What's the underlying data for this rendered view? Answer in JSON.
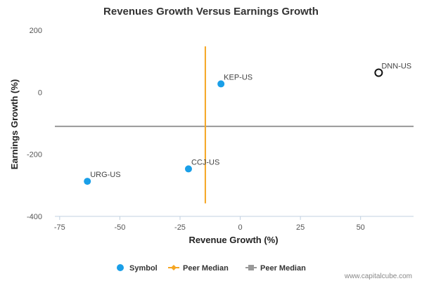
{
  "chart_data": {
    "type": "scatter",
    "title": "Revenues Growth Versus Earnings Growth",
    "xlabel": "Revenue Growth (%)",
    "ylabel": "Earnings Growth (%)",
    "xlim": [
      -77,
      72
    ],
    "ylim": [
      -400,
      200
    ],
    "x_ticks": [
      -75,
      -50,
      -25,
      0,
      25,
      50
    ],
    "y_ticks": [
      200,
      0,
      -200,
      -400
    ],
    "points": [
      {
        "label": "KEP-US",
        "x": -8,
        "y": 27,
        "style": "symbol"
      },
      {
        "label": "CCJ-US",
        "x": -21.5,
        "y": -247,
        "style": "symbol"
      },
      {
        "label": "URG-US",
        "x": -63.5,
        "y": -287,
        "style": "symbol"
      },
      {
        "label": "DNN-US",
        "x": 57.5,
        "y": 63,
        "style": "highlight"
      }
    ],
    "peer_median_x": -14.5,
    "peer_median_x_span": [
      -358,
      148
    ],
    "peer_median_y": -110,
    "legend": {
      "position": "bottom-center",
      "items": [
        {
          "label": "Symbol",
          "marker": "circle",
          "color": "#1a9fe8"
        },
        {
          "label": "Peer Median",
          "marker": "line-diamond",
          "color": "#f5a623"
        },
        {
          "label": "Peer Median",
          "marker": "line-square",
          "color": "#999999"
        }
      ]
    },
    "colors": {
      "symbol": "#1a9fe8",
      "highlight_stroke": "#111111",
      "median_x": "#f5a623",
      "median_y": "#999999"
    }
  },
  "credit": "www.capitalcube.com"
}
